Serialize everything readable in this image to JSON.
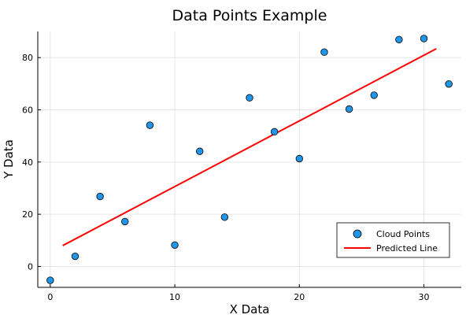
{
  "chart_data": {
    "type": "scatter",
    "title": "Data Points Example",
    "xlabel": "X Data",
    "ylabel": "Y Data",
    "xlim": [
      -1,
      33
    ],
    "ylim": [
      -8,
      90
    ],
    "x_ticks": [
      0,
      10,
      20,
      30
    ],
    "y_ticks": [
      0,
      20,
      40,
      60,
      80
    ],
    "grid": true,
    "legend_position": "bottom-right",
    "colors": {
      "points": "#1f96e8",
      "points_edge": "#000000",
      "line": "#ff0000",
      "grid": "#e6e6e6",
      "axis": "#000000"
    },
    "series": [
      {
        "name": "Cloud Points",
        "type": "scatter",
        "x": [
          0,
          2,
          4,
          6,
          8,
          10,
          12,
          14,
          16,
          18,
          20,
          22,
          24,
          26,
          28,
          30,
          32
        ],
        "y": [
          -5.3,
          3.9,
          26.8,
          17.2,
          54.1,
          8.2,
          44.1,
          18.9,
          64.6,
          51.6,
          41.3,
          82.1,
          60.3,
          65.6,
          86.9,
          87.3,
          69.9
        ]
      },
      {
        "name": "Predicted Line",
        "type": "line",
        "x": [
          1,
          31
        ],
        "y": [
          8,
          83.4
        ]
      }
    ]
  }
}
